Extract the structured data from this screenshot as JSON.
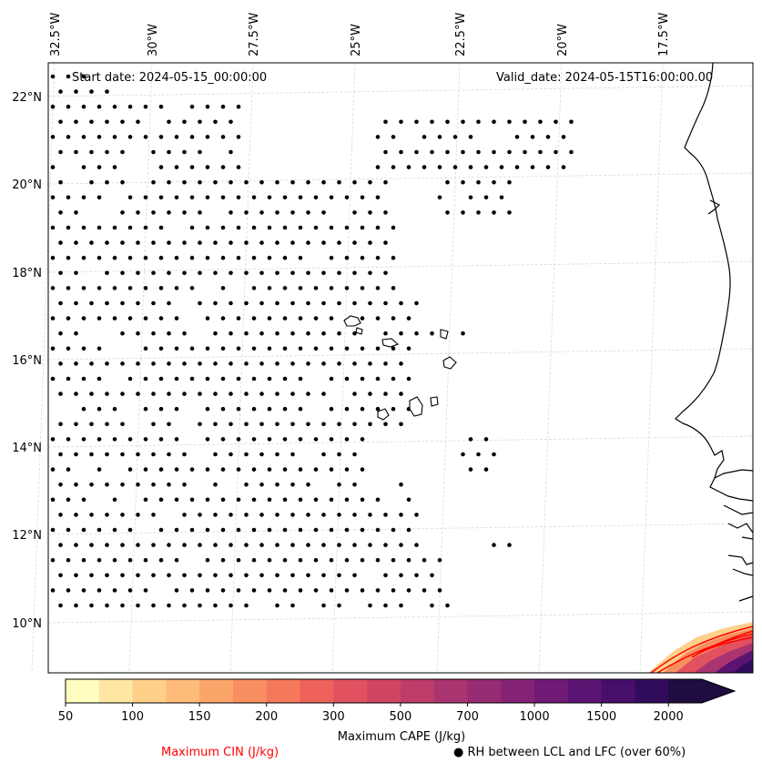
{
  "header": {
    "start_date": "Start date: 2024-05-15_00:00:00",
    "valid_date": "Valid_date: 2024-05-15T16:00:00.00"
  },
  "axes": {
    "lon_labels": [
      "32.5°W",
      "30°W",
      "27.5°W",
      "25°W",
      "22.5°W",
      "20°W",
      "17.5°W"
    ],
    "lat_labels": [
      "22°N",
      "20°N",
      "18°N",
      "16°N",
      "14°N",
      "12°N",
      "10°N"
    ],
    "gridlines": true
  },
  "colorbar": {
    "title": "Maximum CAPE (J/kg)",
    "ticks": [
      "50",
      "100",
      "150",
      "200",
      "300",
      "500",
      "700",
      "1000",
      "1500",
      "2000"
    ],
    "colors": [
      "#fffdbf",
      "#fee6a3",
      "#fed08a",
      "#febb79",
      "#fca56b",
      "#f98f61",
      "#f5785c",
      "#ee625b",
      "#e1515f",
      "#d04563",
      "#bd3c6a",
      "#aa346f",
      "#972c72",
      "#842374",
      "#701a75",
      "#5c1472",
      "#480e6b",
      "#320c5c",
      "#1f0c41"
    ],
    "extend": "max"
  },
  "legend": {
    "cin_label": "Maximum CIN (J/kg)",
    "cin_color": "#ff0000",
    "rh_label": "RH between LCL and LFC (over 60%)",
    "rh_marker": "●"
  }
}
